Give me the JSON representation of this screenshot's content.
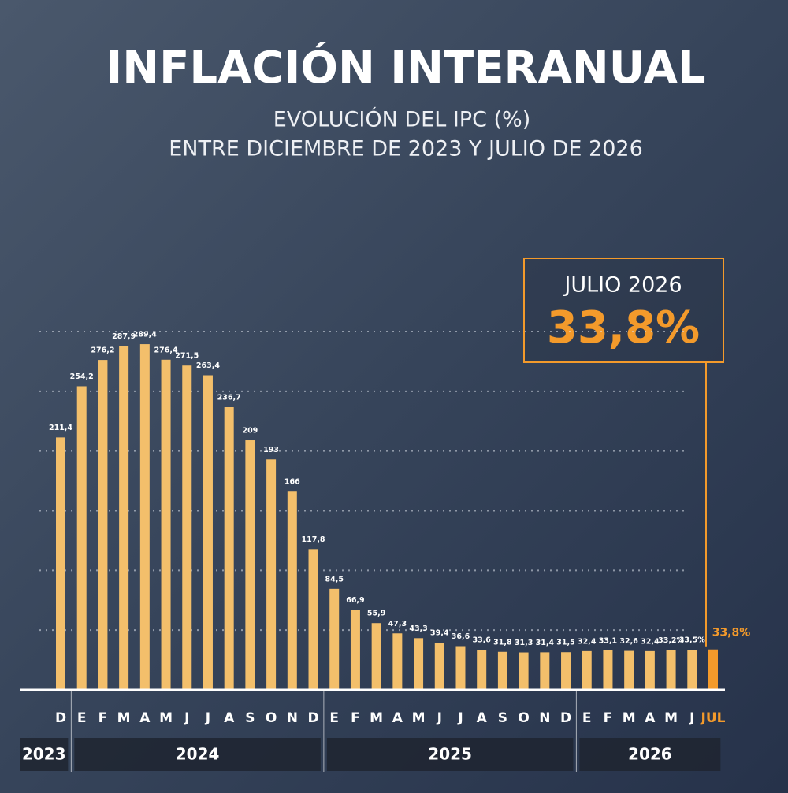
{
  "chart_data": {
    "type": "bar",
    "title": "INFLACIÓN INTERANUAL",
    "subtitle": [
      "EVOLUCIÓN DEL IPC (%)",
      "ENTRE DICIEMBRE DE 2023 Y JULIO DE 2026"
    ],
    "categories": [
      "D",
      "E",
      "F",
      "M",
      "A",
      "M",
      "J",
      "J",
      "A",
      "S",
      "O",
      "N",
      "D",
      "E",
      "F",
      "M",
      "A",
      "M",
      "J",
      "J",
      "A",
      "S",
      "O",
      "N",
      "D",
      "E",
      "F",
      "M",
      "A",
      "M",
      "J",
      "JUL"
    ],
    "year_groups": [
      "2023",
      "2024",
      "2025",
      "2026"
    ],
    "values": [
      211.4,
      254.2,
      276.2,
      287.9,
      289.4,
      276.4,
      271.5,
      263.4,
      236.7,
      209,
      193,
      166,
      117.8,
      84.5,
      66.9,
      55.9,
      47.3,
      43.3,
      39.4,
      36.6,
      33.6,
      31.8,
      31.3,
      31.4,
      31.5,
      32.4,
      33.1,
      32.6,
      32.4,
      33.2,
      33.5,
      33.8
    ],
    "value_labels": [
      "211,4",
      "254,2",
      "276,2",
      "287,9",
      "289,4",
      "276,4",
      "271,5",
      "263,4",
      "236,7",
      "209",
      "193",
      "166",
      "117,8",
      "84,5",
      "66,9",
      "55,9",
      "47,3",
      "43,3",
      "39,4",
      "36,6",
      "33,6",
      "31,8",
      "31,3",
      "31,4",
      "31,5",
      "32,4",
      "33,1",
      "32,6",
      "32,4",
      "33,2%",
      "33,5%",
      "33,8%"
    ],
    "color": "#f3bf6b",
    "highlight_color": "#f39a2b",
    "ylim": [
      0,
      300
    ],
    "yticks": [
      50,
      100,
      150,
      200,
      250,
      300
    ],
    "grid": true,
    "callout": {
      "label": "JULIO 2026",
      "value_label": "33,8%"
    }
  }
}
